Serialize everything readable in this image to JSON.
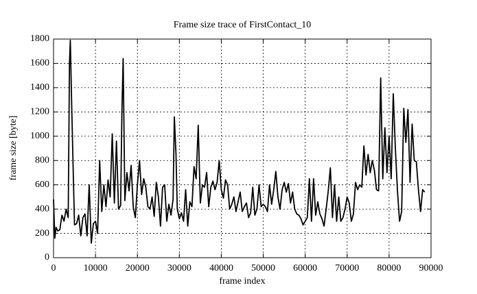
{
  "chart_data": {
    "type": "line",
    "title": "Frame size trace of FirstContact_10",
    "xlabel": "frame index",
    "ylabel": "frame size [byte]",
    "color": "#000000",
    "grid": true,
    "xlim": [
      0,
      90000
    ],
    "ylim": [
      0,
      1800
    ],
    "xticks": [
      0,
      10000,
      20000,
      30000,
      40000,
      50000,
      60000,
      70000,
      80000,
      90000
    ],
    "yticks": [
      0,
      200,
      400,
      600,
      800,
      1000,
      1200,
      1400,
      1600,
      1800
    ],
    "x": [
      0,
      300,
      600,
      1000,
      1500,
      2000,
      2500,
      3000,
      3500,
      3800,
      4000,
      4300,
      4700,
      5000,
      5500,
      6000,
      6500,
      7000,
      7500,
      8000,
      8500,
      9000,
      9500,
      10000,
      10500,
      11000,
      11500,
      12000,
      12500,
      13000,
      13500,
      14000,
      14500,
      15000,
      15500,
      16000,
      16300,
      16600,
      17000,
      17500,
      18000,
      18500,
      19000,
      19500,
      20000,
      20500,
      21000,
      21500,
      22000,
      22500,
      23000,
      23500,
      24000,
      24500,
      25000,
      25500,
      26000,
      26500,
      27000,
      27500,
      28000,
      28500,
      28800,
      29200,
      29500,
      30000,
      30500,
      31000,
      31500,
      32000,
      32500,
      33000,
      33500,
      34000,
      34500,
      35000,
      35500,
      36000,
      36500,
      37000,
      37500,
      38000,
      38500,
      39000,
      39500,
      40000,
      40500,
      41000,
      41500,
      42000,
      42500,
      43000,
      43500,
      44000,
      44500,
      45000,
      45500,
      46000,
      46500,
      47000,
      47500,
      48000,
      48500,
      49000,
      49500,
      50000,
      50500,
      51000,
      51500,
      52000,
      52500,
      53000,
      53500,
      54000,
      54500,
      55000,
      55500,
      56000,
      56500,
      57000,
      57500,
      58000,
      58500,
      59000,
      59500,
      60000,
      60500,
      61000,
      61500,
      62000,
      62500,
      63000,
      63500,
      64000,
      64500,
      65000,
      65500,
      66000,
      66500,
      67000,
      67500,
      68000,
      68500,
      69000,
      69500,
      70000,
      70500,
      71000,
      71500,
      72000,
      72500,
      73000,
      73500,
      74000,
      74500,
      75000,
      75500,
      76000,
      76500,
      77000,
      77500,
      78000,
      78500,
      79000,
      79500,
      80000,
      80500,
      81000,
      81500,
      82000,
      82500,
      83000,
      83500,
      84000,
      84500,
      85000,
      85500,
      86000,
      86500,
      87000,
      87500,
      88000,
      88500
    ],
    "values": [
      480,
      160,
      250,
      220,
      230,
      350,
      300,
      400,
      330,
      1600,
      1790,
      1300,
      700,
      270,
      280,
      350,
      180,
      330,
      360,
      180,
      600,
      120,
      280,
      300,
      200,
      800,
      380,
      600,
      420,
      640,
      500,
      1020,
      450,
      960,
      400,
      430,
      1200,
      1640,
      470,
      700,
      550,
      760,
      420,
      330,
      600,
      800,
      520,
      650,
      580,
      420,
      400,
      500,
      340,
      620,
      500,
      260,
      580,
      600,
      300,
      440,
      350,
      480,
      1160,
      850,
      400,
      320,
      370,
      300,
      560,
      260,
      460,
      420,
      750,
      650,
      1090,
      450,
      600,
      580,
      700,
      420,
      580,
      630,
      560,
      620,
      800,
      560,
      490,
      640,
      600,
      400,
      440,
      500,
      380,
      460,
      540,
      380,
      420,
      450,
      330,
      370,
      580,
      350,
      400,
      600,
      420,
      440,
      420,
      380,
      600,
      440,
      560,
      710,
      500,
      400,
      560,
      620,
      540,
      610,
      450,
      540,
      400,
      360,
      350,
      320,
      270,
      300,
      330,
      650,
      300,
      650,
      350,
      460,
      360,
      320,
      260,
      400,
      550,
      740,
      330,
      600,
      300,
      500,
      300,
      330,
      400,
      500,
      450,
      300,
      360,
      620,
      560,
      600,
      580,
      920,
      680,
      850,
      700,
      800,
      720,
      560,
      550,
      1480,
      650,
      1070,
      700,
      1000,
      650,
      1350,
      900,
      550,
      300,
      380,
      1230,
      950,
      1220,
      620,
      1100,
      800,
      790,
      560,
      380,
      560,
      540
    ]
  }
}
